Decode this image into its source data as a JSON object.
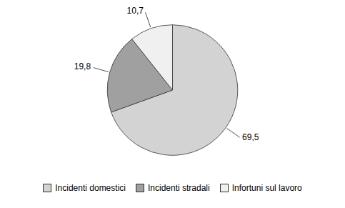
{
  "chart_data": {
    "type": "pie",
    "categories": [
      "Incidenti domestici",
      "Incidenti stradali",
      "Infortuni sul lavoro"
    ],
    "values": [
      69.5,
      19.8,
      10.7
    ],
    "value_labels": [
      "69,5",
      "19,8",
      "10,7"
    ],
    "colors": [
      "#d3d3d3",
      "#a0a0a0",
      "#f0f0f0"
    ],
    "data_labels": true,
    "legend": "bottom"
  }
}
